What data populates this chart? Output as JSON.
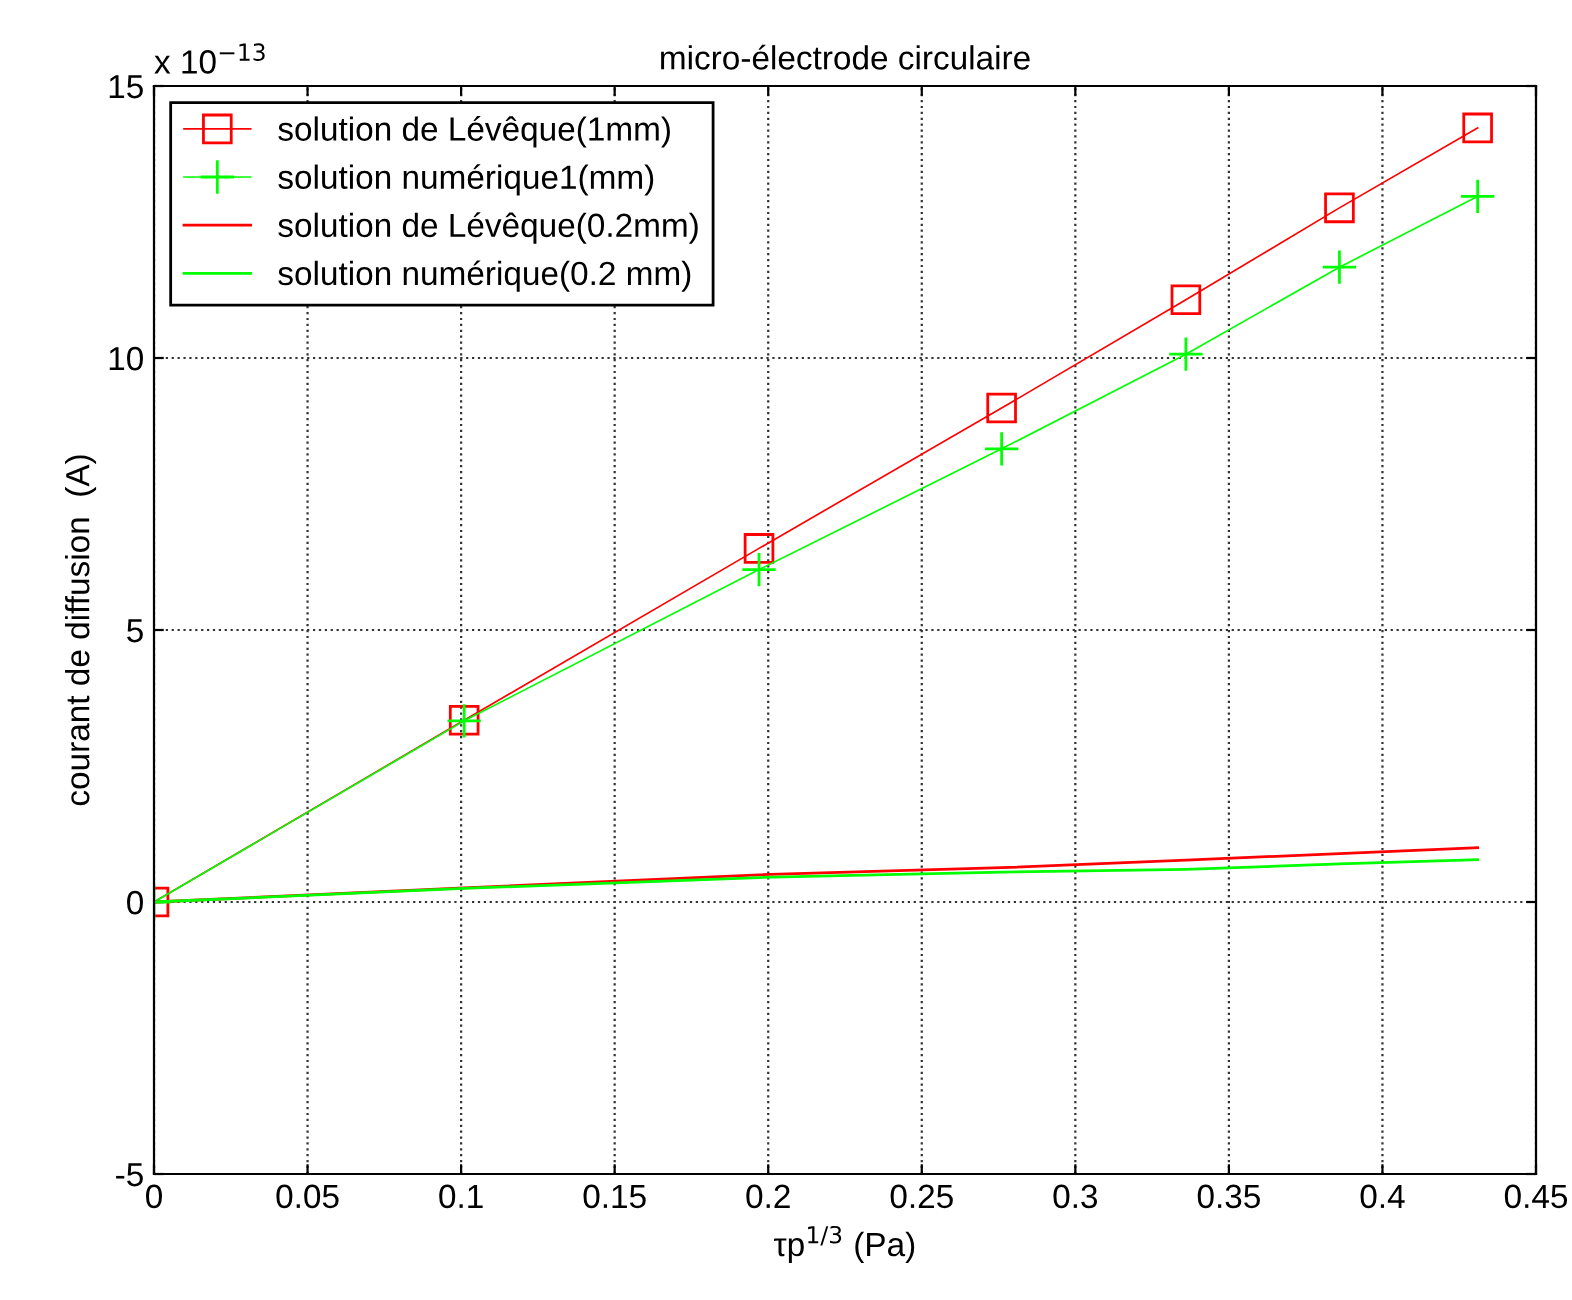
{
  "chart_data": {
    "type": "line",
    "title": "micro-électrode circulaire",
    "xlabel": "τp$^{1/3}$ (Pa)",
    "ylabel": "courant de diffusion  (A)",
    "annotations": [
      "x 10$^{−13}$"
    ],
    "x": [
      0,
      0.101,
      0.197,
      0.276,
      0.336,
      0.386,
      0.431
    ],
    "series": [
      {
        "name": "solution de Lévêque(1mm)",
        "color": "#ff0000",
        "marker": "square",
        "values": [
          0,
          3.34,
          6.5,
          9.08,
          11.07,
          12.76,
          14.23
        ]
      },
      {
        "name": "solution numérique1(mm)",
        "color": "#00ff00",
        "marker": "cross",
        "values": [
          0,
          3.33,
          6.11,
          8.33,
          10.07,
          11.67,
          12.97
        ]
      },
      {
        "name": "solution de Lévêque(0.2mm)",
        "color": "#ff0000",
        "values": [
          0,
          0.26,
          0.5,
          0.63,
          0.77,
          0.89,
          1.0
        ]
      },
      {
        "name": "solution numérique(0.2 mm)",
        "color": "#00ff00",
        "values": [
          0,
          0.25,
          0.45,
          0.55,
          0.6,
          0.7,
          0.78
        ]
      }
    ],
    "xlim": [
      0,
      0.45
    ],
    "xticks": [
      0,
      0.05,
      0.1,
      0.15,
      0.2,
      0.25,
      0.3,
      0.35,
      0.4,
      0.45
    ],
    "ylim": [
      -5,
      15
    ],
    "yticks": [
      -5,
      0,
      5,
      10,
      15
    ],
    "grid": true,
    "legend": "top left",
    "line_style": "solid"
  }
}
